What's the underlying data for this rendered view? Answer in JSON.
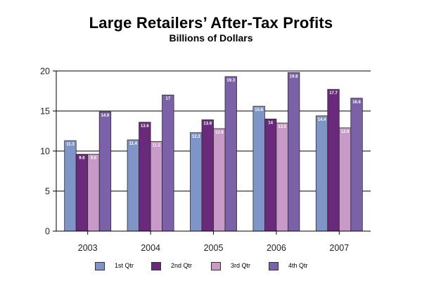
{
  "chart_data": {
    "type": "bar",
    "title": "Large Retailers’ After-Tax Profits",
    "subtitle": "Billions of Dollars",
    "categories": [
      "2003",
      "2004",
      "2005",
      "2006",
      "2007"
    ],
    "series": [
      {
        "name": "1st Qtr",
        "color": "#7f95c8",
        "values": [
          11.3,
          11.4,
          12.3,
          15.6,
          14.4
        ]
      },
      {
        "name": "2nd Qtr",
        "color": "#6a2a7c",
        "values": [
          9.6,
          13.6,
          13.9,
          14,
          17.7
        ]
      },
      {
        "name": "3rd Qtr",
        "color": "#c79ac8",
        "values": [
          9.6,
          11.2,
          12.8,
          13.5,
          12.9
        ]
      },
      {
        "name": "4th Qtr",
        "color": "#7b62a8",
        "values": [
          14.9,
          17.0,
          19.3,
          19.8,
          16.6
        ]
      }
    ],
    "ylim": [
      0,
      20
    ],
    "yticks": [
      "0",
      "5",
      "10",
      "15",
      "20"
    ],
    "grid": true,
    "legend_position": "bottom"
  }
}
